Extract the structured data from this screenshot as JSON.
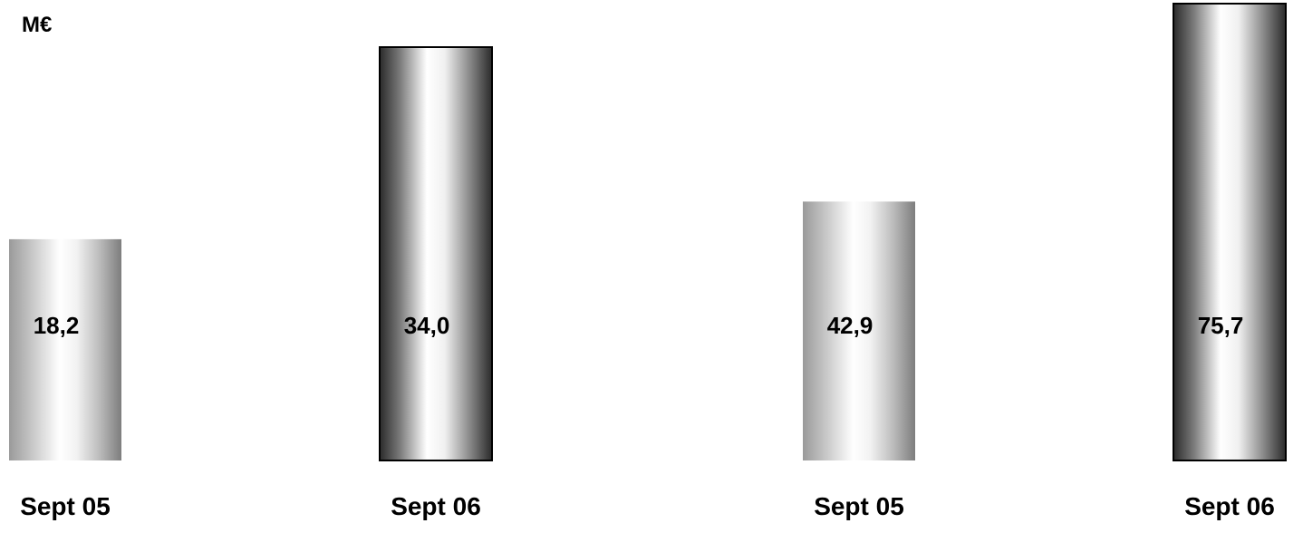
{
  "chart_data": {
    "type": "bar",
    "unit_label": "M€",
    "categories": [
      "Sept 05",
      "Sept 06",
      "Sept 05",
      "Sept 06"
    ],
    "values": [
      18.2,
      34.0,
      42.9,
      75.7
    ],
    "value_labels": [
      "18,2",
      "34,0",
      "42,9",
      "75,7"
    ],
    "bar_styles": [
      "light",
      "dark",
      "light",
      "dark"
    ],
    "groups": [
      {
        "bars": [
          0,
          1
        ]
      },
      {
        "bars": [
          2,
          3
        ]
      }
    ],
    "title": "",
    "xlabel": "",
    "ylabel": "",
    "grid": false,
    "legend": "none"
  }
}
